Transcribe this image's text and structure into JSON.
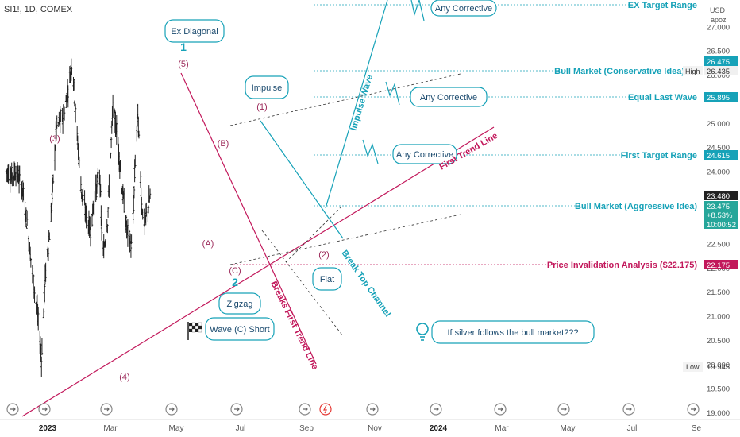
{
  "header": {
    "symbol": "SI1!, 1D, COMEX"
  },
  "currency": {
    "unit": "USD",
    "sub": "apoz"
  },
  "colors": {
    "up": "#26a69a",
    "teal": "#17a2b8",
    "crimson": "#c2185b",
    "wave": "#9c2a5a",
    "dark": "#333333",
    "axis": "#555555"
  },
  "chart_data": {
    "type": "candlestick",
    "xlabels": [
      "2023",
      "Mar",
      "May",
      "Jul",
      "Sep",
      "Nov",
      "2024",
      "Mar",
      "May",
      "Jul",
      "Se"
    ],
    "ytick_labels": [
      "19.000",
      "19.500",
      "20.000",
      "20.500",
      "21.000",
      "21.500",
      "22.000",
      "22.500",
      "23.000",
      "23.500",
      "24.000",
      "24.500",
      "25.000",
      "25.500",
      "26.000",
      "26.500",
      "27.000"
    ],
    "ylim": [
      18.95,
      27.55
    ],
    "price_badges": [
      {
        "value": "26.475",
        "kind": "teal"
      },
      {
        "value": "26.435",
        "kind": "plain"
      },
      {
        "value": "25.895",
        "kind": "teal"
      },
      {
        "value": "24.615",
        "kind": "teal"
      },
      {
        "value": "23.480",
        "kind": "dark"
      },
      {
        "value": "23.475",
        "kind": "up"
      },
      {
        "value": "+8.53%",
        "kind": "up"
      },
      {
        "value": "10:00:52",
        "kind": "up"
      },
      {
        "value": "22.175",
        "kind": "crimson"
      }
    ],
    "high_label": "High",
    "low_label": "Low",
    "low_value": "19.945",
    "price_path": [
      [
        "Jan 1",
        24.0
      ],
      [
        "Jan 10",
        23.9
      ],
      [
        "Jan 20",
        24.0
      ],
      [
        "Feb 1",
        23.6
      ],
      [
        "Feb 10",
        22.8
      ],
      [
        "Feb 22",
        21.6
      ],
      [
        "Mar 1",
        21.0
      ],
      [
        "Mar 8",
        20.1
      ],
      [
        "Mar 15",
        21.8
      ],
      [
        "Mar 25",
        22.9
      ],
      [
        "Apr 5",
        24.9
      ],
      [
        "Apr 20",
        25.2
      ],
      [
        "May 5",
        26.3
      ],
      [
        "May 12",
        25.0
      ],
      [
        "May 22",
        23.6
      ],
      [
        "Jun 1",
        23.0
      ],
      [
        "Jun 8",
        22.8
      ],
      [
        "Jun 15",
        23.4
      ],
      [
        "Jun 25",
        24.0
      ],
      [
        "Jul 1",
        22.2
      ],
      [
        "Jul 10",
        23.0
      ],
      [
        "Jul 20",
        25.3
      ],
      [
        "Jul 28",
        24.8
      ],
      [
        "Aug 5",
        23.8
      ],
      [
        "Aug 15",
        22.8
      ],
      [
        "Aug 25",
        22.4
      ],
      [
        "Sep 1",
        24.5
      ],
      [
        "Sep 5",
        25.2
      ],
      [
        "Sep 12",
        23.3
      ],
      [
        "Sep 18",
        22.9
      ],
      [
        "Sep 28",
        23.47
      ]
    ],
    "wave_labels": [
      "(3)",
      "(4)",
      "(5)",
      "1",
      "(A)",
      "(B)",
      "(C)",
      "2",
      "(1)",
      "(2)"
    ],
    "level_labels": [
      {
        "text": "EX Target Range",
        "color": "teal"
      },
      {
        "text": "Bull Market (Conservative Idea)",
        "color": "teal"
      },
      {
        "text": "Equal Last Wave",
        "color": "teal"
      },
      {
        "text": "First Target Range",
        "color": "teal"
      },
      {
        "text": "Bull Market (Aggressive Idea)",
        "color": "teal"
      },
      {
        "text": "Price Invalidation Analysis ($22.175)",
        "color": "crimson"
      }
    ],
    "callouts": [
      "Ex Diagonal",
      "Impulse",
      "Zigzag",
      "Wave (C) Short",
      "Flat",
      "Any Corrective",
      "Any Corrective",
      "Any Corrective",
      "If silver follows the bull market???"
    ],
    "line_labels": [
      "Impulse Wave",
      "First Trend Line",
      "Breaks First Trend Line",
      "Break Top Channel"
    ]
  }
}
